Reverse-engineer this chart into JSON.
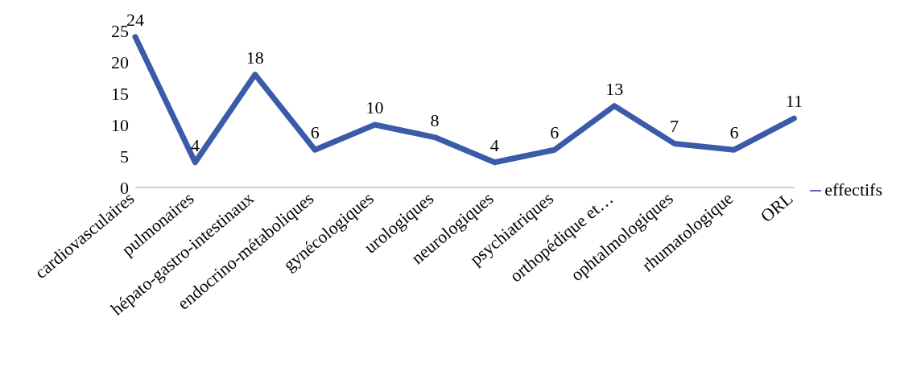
{
  "chart_data": {
    "type": "line",
    "categories": [
      "cardiovasculaires",
      "pulmonaires",
      "hépato-gastro-intestinaux",
      "endocrino-métaboliques",
      "gynécologiques",
      "urologiques",
      "neurologiques",
      "psychiatriques",
      "orthopédique et…",
      "ophtalmologiques",
      "rhumatologique",
      "ORL"
    ],
    "series": [
      {
        "name": "effectifs",
        "color": "#3a5ba8",
        "values": [
          24,
          4,
          18,
          6,
          10,
          8,
          4,
          6,
          13,
          7,
          6,
          11
        ]
      }
    ],
    "ylim": [
      0,
      25
    ],
    "yticks": [
      0,
      5,
      10,
      15,
      20,
      25
    ],
    "data_labels": true,
    "legend": "right",
    "grid": false,
    "marker": "none"
  }
}
